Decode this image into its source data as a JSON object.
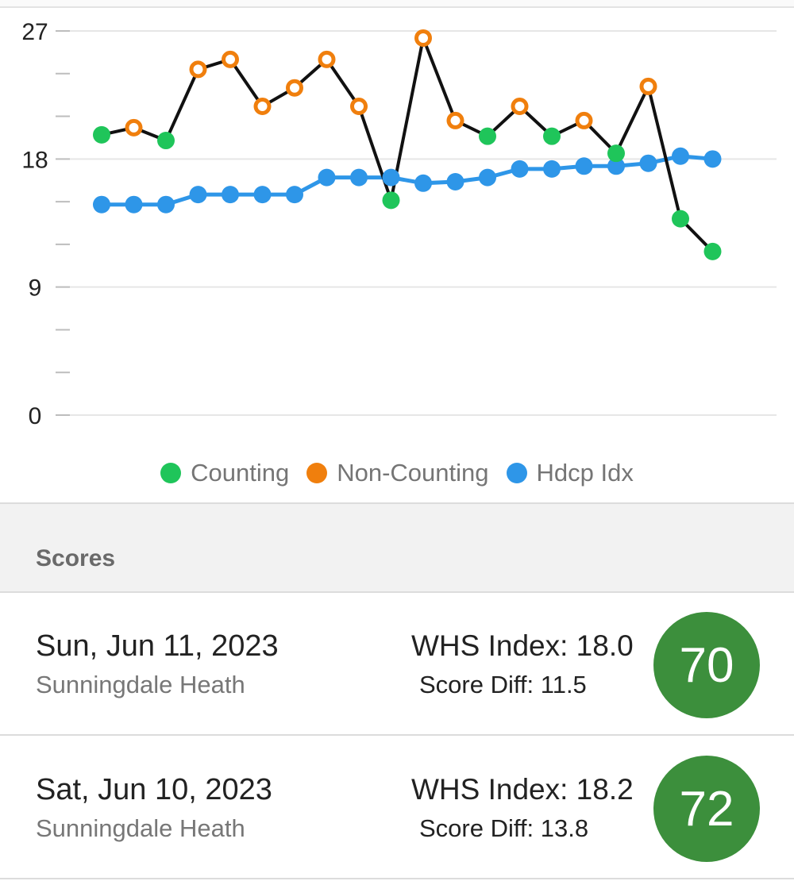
{
  "chart": {
    "legend": [
      {
        "label": "Counting",
        "color": "#1fc55a"
      },
      {
        "label": "Non-Counting",
        "color": "#f07f0d"
      },
      {
        "label": "Hdcp Idx",
        "color": "#2e96e8"
      }
    ]
  },
  "chart_data": {
    "type": "line",
    "ylim": [
      0,
      27
    ],
    "yticks": [
      "27",
      "18",
      "9",
      "0"
    ],
    "series": [
      {
        "name": "Score Diff",
        "color": "#111111",
        "points": [
          {
            "y": 19.7,
            "kind": "counting"
          },
          {
            "y": 20.2,
            "kind": "non-counting"
          },
          {
            "y": 19.3,
            "kind": "counting"
          },
          {
            "y": 24.3,
            "kind": "non-counting"
          },
          {
            "y": 25.0,
            "kind": "non-counting"
          },
          {
            "y": 21.7,
            "kind": "non-counting"
          },
          {
            "y": 23.0,
            "kind": "non-counting"
          },
          {
            "y": 25.0,
            "kind": "non-counting"
          },
          {
            "y": 21.7,
            "kind": "non-counting"
          },
          {
            "y": 15.1,
            "kind": "counting"
          },
          {
            "y": 26.5,
            "kind": "non-counting"
          },
          {
            "y": 20.7,
            "kind": "non-counting"
          },
          {
            "y": 19.6,
            "kind": "counting"
          },
          {
            "y": 21.7,
            "kind": "non-counting"
          },
          {
            "y": 19.6,
            "kind": "counting"
          },
          {
            "y": 20.7,
            "kind": "non-counting"
          },
          {
            "y": 18.4,
            "kind": "counting"
          },
          {
            "y": 23.1,
            "kind": "non-counting"
          },
          {
            "y": 13.8,
            "kind": "counting"
          },
          {
            "y": 11.5,
            "kind": "counting"
          }
        ]
      },
      {
        "name": "Hdcp Idx",
        "color": "#2e96e8",
        "values": [
          14.8,
          14.8,
          14.8,
          15.5,
          15.5,
          15.5,
          15.5,
          16.7,
          16.7,
          16.7,
          16.3,
          16.4,
          16.7,
          17.3,
          17.3,
          17.5,
          17.5,
          17.7,
          18.2,
          18.0
        ]
      }
    ],
    "grid": true,
    "legend_position": "bottom"
  },
  "scores": {
    "header": "Scores",
    "rows": [
      {
        "date": "Sun, Jun 11, 2023",
        "course": "Sunningdale Heath",
        "index": "WHS Index: 18.0",
        "diff": "Score Diff: 11.5",
        "score": "70"
      },
      {
        "date": "Sat, Jun 10, 2023",
        "course": "Sunningdale Heath",
        "index": "WHS Index: 18.2",
        "diff": "Score Diff: 13.8",
        "score": "72"
      }
    ]
  }
}
